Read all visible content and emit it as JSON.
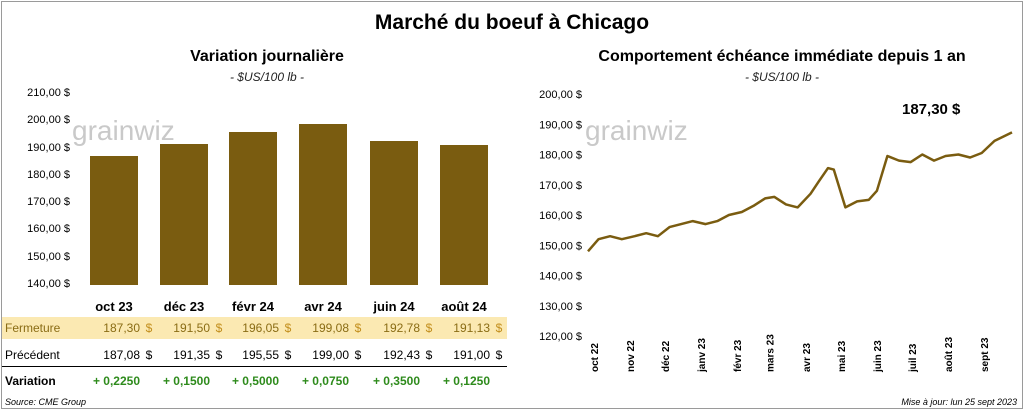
{
  "main_title": "Marché du boeuf à Chicago",
  "watermark": "grainwiz",
  "left": {
    "title": "Variation  journalière",
    "unit": "- $US/100 lb -",
    "y_ticks": [
      "210,00 $",
      "200,00 $",
      "190,00 $",
      "180,00 $",
      "170,00 $",
      "160,00 $",
      "150,00 $",
      "140,00 $"
    ],
    "rows": {
      "close_label": "Fermeture",
      "prev_label": "Précédent",
      "var_label": "Variation",
      "currency": "$",
      "close": [
        "187,30",
        "191,50",
        "196,05",
        "199,08",
        "192,78",
        "191,13"
      ],
      "prev": [
        "187,08",
        "191,35",
        "195,55",
        "199,00",
        "192,43",
        "191,00"
      ],
      "variation": [
        "+ 0,2250",
        "+ 0,1500",
        "+ 0,5000",
        "+ 0,0750",
        "+ 0,3500",
        "+ 0,1250"
      ]
    }
  },
  "right": {
    "title": "Comportement  échéance immédiate depuis 1 an",
    "unit": "- $US/100 lb -",
    "y_ticks": [
      "200,00 $",
      "190,00 $",
      "180,00 $",
      "170,00 $",
      "160,00 $",
      "150,00 $",
      "140,00 $",
      "130,00 $",
      "120,00 $"
    ],
    "x_ticks": [
      "oct 22",
      "nov 22",
      "déc 22",
      "janv 23",
      "févr 23",
      "mars 23",
      "avr 23",
      "mai 23",
      "juin 23",
      "juil 23",
      "août 23",
      "sept 23"
    ],
    "last_label": "187,30 $"
  },
  "footer": {
    "source": "Source: CME Group",
    "updated": "Mise à jour: lun 25 sept 2023"
  },
  "colors": {
    "bar": "#7a5c10",
    "line": "#7a5c10",
    "close_bg": "#fbe9b2",
    "variation": "#2e8b1c"
  },
  "chart_data": [
    {
      "type": "bar",
      "title": "Variation  journalière",
      "ylabel": "- $US/100 lb -",
      "categories": [
        "oct 23",
        "déc 23",
        "févr 24",
        "avr 24",
        "juin 24",
        "août 24"
      ],
      "values": [
        187.3,
        191.5,
        196.05,
        199.08,
        192.78,
        191.13
      ],
      "ylim": [
        140,
        210
      ],
      "grid": false
    },
    {
      "type": "line",
      "title": "Comportement  échéance immédiate depuis 1 an",
      "ylabel": "- $US/100 lb -",
      "ylim": [
        120,
        200
      ],
      "x_ticks": [
        "oct 22",
        "nov 22",
        "déc 22",
        "janv 23",
        "févr 23",
        "mars 23",
        "avr 23",
        "mai 23",
        "juin 23",
        "juil 23",
        "août 23",
        "sept 23"
      ],
      "x": [
        "2022-09-26",
        "2022-10-05",
        "2022-10-15",
        "2022-10-25",
        "2022-11-05",
        "2022-11-15",
        "2022-11-25",
        "2022-12-05",
        "2022-12-15",
        "2022-12-25",
        "2023-01-05",
        "2023-01-15",
        "2023-01-25",
        "2023-02-05",
        "2023-02-15",
        "2023-02-25",
        "2023-03-05",
        "2023-03-15",
        "2023-03-25",
        "2023-04-05",
        "2023-04-12",
        "2023-04-20",
        "2023-04-25",
        "2023-05-05",
        "2023-05-15",
        "2023-05-25",
        "2023-06-01",
        "2023-06-10",
        "2023-06-20",
        "2023-06-30",
        "2023-07-10",
        "2023-07-20",
        "2023-07-30",
        "2023-08-10",
        "2023-08-20",
        "2023-08-30",
        "2023-09-10",
        "2023-09-18",
        "2023-09-25"
      ],
      "series": [
        {
          "values": [
            148.0,
            152.0,
            153.0,
            152.0,
            153.0,
            154.0,
            153.0,
            156.0,
            157.0,
            158.0,
            157.0,
            158.0,
            160.0,
            161.0,
            163.0,
            165.5,
            166.0,
            163.5,
            162.5,
            167.0,
            171.0,
            175.5,
            175.0,
            162.5,
            164.5,
            165.0,
            168.0,
            179.5,
            178.0,
            177.5,
            180.0,
            178.0,
            179.5,
            180.0,
            179.0,
            180.5,
            184.5,
            186.0,
            187.3
          ]
        }
      ],
      "annotation": "187,30 $",
      "grid": false
    }
  ]
}
